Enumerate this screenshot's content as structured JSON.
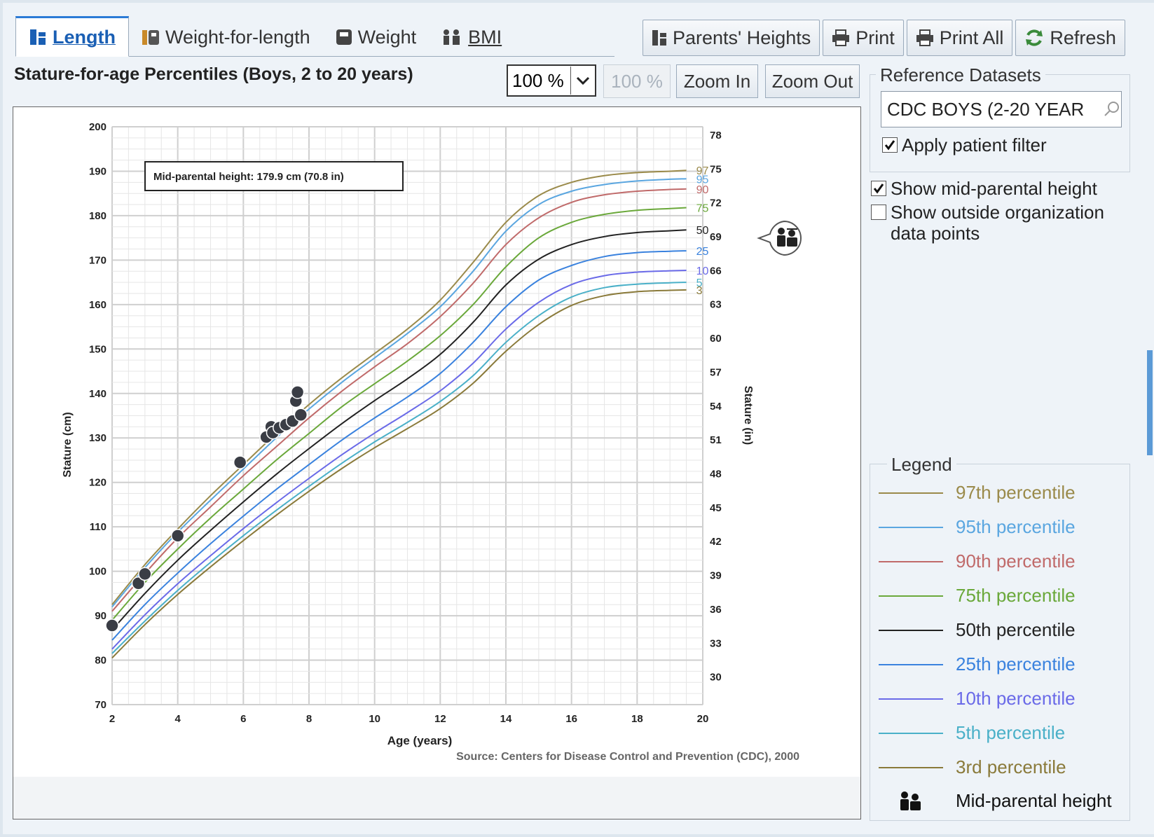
{
  "tabs": [
    {
      "label": "Length",
      "icon": "length-icon",
      "active": true
    },
    {
      "label": "Weight-for-length",
      "icon": "weight-for-length-icon",
      "active": false
    },
    {
      "label": "Weight",
      "icon": "weight-icon",
      "active": false
    },
    {
      "label": "BMI",
      "icon": "bmi-icon",
      "active": false
    }
  ],
  "toolbar": {
    "parents_heights": "Parents' Heights",
    "print": "Print",
    "print_all": "Print All",
    "refresh": "Refresh"
  },
  "chart_title": "Stature-for-age Percentiles (Boys, 2 to 20 years)",
  "zoom": {
    "selected": "100 %",
    "readout": "100 %",
    "zoom_in": "Zoom In",
    "zoom_out": "Zoom Out"
  },
  "reference": {
    "legend": "Reference Datasets",
    "value": "CDC BOYS (2-20 YEAR",
    "apply_filter_label": "Apply patient filter",
    "apply_filter_checked": true
  },
  "options": {
    "show_mid_parental": {
      "label": "Show mid-parental height",
      "checked": true
    },
    "show_outside": {
      "label": "Show outside organization data points",
      "checked": false
    }
  },
  "legend": {
    "title": "Legend",
    "items": [
      {
        "label": "97th percentile",
        "color": "#9a8a4a"
      },
      {
        "label": "95th percentile",
        "color": "#5aa6e0"
      },
      {
        "label": "90th percentile",
        "color": "#c06a6a"
      },
      {
        "label": "75th percentile",
        "color": "#6aa83a"
      },
      {
        "label": "50th percentile",
        "color": "#222222"
      },
      {
        "label": "25th percentile",
        "color": "#3a82de"
      },
      {
        "label": "10th percentile",
        "color": "#6a6ae8"
      },
      {
        "label": "5th percentile",
        "color": "#4ab0c8"
      },
      {
        "label": "3rd percentile",
        "color": "#8a7a3a"
      }
    ],
    "mid_parental_label": "Mid-parental height"
  },
  "chart_data": {
    "type": "line",
    "xlabel": "Age (years)",
    "ylabel": "Stature (cm)",
    "ylabel_right": "Stature (in)",
    "xlim": [
      2,
      20
    ],
    "ylim": [
      70,
      200
    ],
    "xticks": [
      2,
      4,
      6,
      8,
      10,
      12,
      14,
      16,
      18,
      20
    ],
    "yticks": [
      70,
      80,
      90,
      100,
      110,
      120,
      130,
      140,
      150,
      160,
      170,
      180,
      190,
      200
    ],
    "yticks_right": [
      30,
      33,
      36,
      39,
      42,
      45,
      48,
      51,
      54,
      57,
      60,
      63,
      66,
      69,
      72,
      75,
      78
    ],
    "grid": true,
    "annotation": "Mid-parental height: 179.9 cm (70.8 in)",
    "source": "Source: Centers for Disease Control and Prevention (CDC), 2000",
    "mid_parental_height_cm": 179.9,
    "ages": [
      2,
      3,
      4,
      5,
      6,
      7,
      8,
      9,
      10,
      11,
      12,
      13,
      14,
      15,
      16,
      17,
      18,
      19,
      19.5
    ],
    "series": [
      {
        "name": "97",
        "color": "#9a8a4a",
        "values": [
          92.5,
          101.5,
          109.5,
          117,
          124,
          131,
          137.5,
          143.5,
          149,
          154.5,
          161,
          169.5,
          178.5,
          184.5,
          187.5,
          189,
          189.7,
          190,
          190.2
        ]
      },
      {
        "name": "95",
        "color": "#5aa6e0",
        "values": [
          92,
          100.8,
          108.8,
          116,
          123,
          130,
          136.5,
          142.5,
          148,
          153.5,
          159.5,
          167.5,
          176.5,
          182.5,
          185.5,
          187,
          187.8,
          188.2,
          188.3
        ]
      },
      {
        "name": "90",
        "color": "#c06a6a",
        "values": [
          91,
          99.5,
          107.5,
          114.5,
          121.5,
          128,
          134.5,
          140.5,
          146,
          151.2,
          157.3,
          164.8,
          173.5,
          179.5,
          183,
          184.7,
          185.5,
          185.9,
          186
        ]
      },
      {
        "name": "75",
        "color": "#6aa83a",
        "values": [
          89,
          97.5,
          105,
          112,
          118.5,
          125,
          131,
          137,
          142.2,
          147.3,
          153,
          160,
          168.5,
          175,
          178.5,
          180.3,
          181.2,
          181.6,
          181.8
        ]
      },
      {
        "name": "50",
        "color": "#222222",
        "values": [
          86.8,
          95,
          102.5,
          109.2,
          115.6,
          121.8,
          127.6,
          133.2,
          138.4,
          143.3,
          148.8,
          156,
          164.4,
          170.2,
          173.5,
          175.3,
          176.2,
          176.6,
          176.8
        ]
      },
      {
        "name": "25",
        "color": "#3a82de",
        "values": [
          84.5,
          92.5,
          99.6,
          106.2,
          112.4,
          118.4,
          124,
          129.5,
          134.5,
          139.2,
          144.5,
          151.5,
          159.5,
          165.5,
          168.8,
          170.8,
          171.7,
          172,
          172.1
        ]
      },
      {
        "name": "10",
        "color": "#6a6ae8",
        "values": [
          82.5,
          90.2,
          97.2,
          103.5,
          109.6,
          115.4,
          120.9,
          126.2,
          131.1,
          135.7,
          140.6,
          146.8,
          154.5,
          160.5,
          164.5,
          166.5,
          167.3,
          167.6,
          167.7
        ]
      },
      {
        "name": "5",
        "color": "#4ab0c8",
        "values": [
          81.5,
          88.8,
          95.7,
          102,
          108,
          113.7,
          119.1,
          124.3,
          129.1,
          133.5,
          138.2,
          144,
          151.5,
          157.5,
          161.7,
          163.8,
          164.6,
          164.9,
          165
        ]
      },
      {
        "name": "3",
        "color": "#8a7a3a",
        "values": [
          80.5,
          88,
          94.8,
          101,
          106.9,
          112.6,
          118,
          123.1,
          127.8,
          132.1,
          136.6,
          142.3,
          149.5,
          155.5,
          159.8,
          162,
          162.9,
          163.2,
          163.3
        ]
      }
    ],
    "patient_points": [
      {
        "age": 2.0,
        "stature": 87.8
      },
      {
        "age": 2.8,
        "stature": 97.3
      },
      {
        "age": 3.0,
        "stature": 99.4
      },
      {
        "age": 4.0,
        "stature": 108.0
      },
      {
        "age": 5.9,
        "stature": 124.5
      },
      {
        "age": 6.7,
        "stature": 130.2
      },
      {
        "age": 6.85,
        "stature": 132.5
      },
      {
        "age": 6.9,
        "stature": 131.2
      },
      {
        "age": 7.1,
        "stature": 132.3
      },
      {
        "age": 7.3,
        "stature": 133.0
      },
      {
        "age": 7.5,
        "stature": 133.8
      },
      {
        "age": 7.6,
        "stature": 138.3
      },
      {
        "age": 7.65,
        "stature": 140.3
      },
      {
        "age": 7.75,
        "stature": 135.2
      }
    ]
  }
}
